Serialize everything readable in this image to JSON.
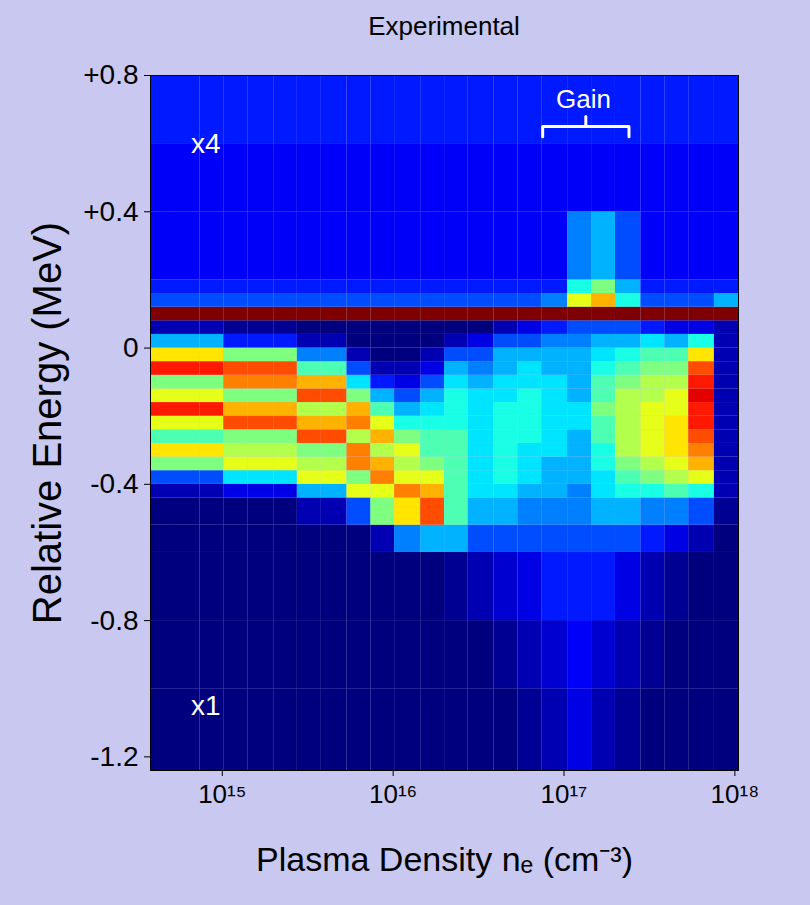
{
  "chart_data": {
    "type": "heatmap",
    "title": "Experimental",
    "x_label": "Plasma Density nₑ (cm⁻³)",
    "y_label": "Relative Energy (MeV)",
    "log": "x",
    "xlim": [
      380000000000000.0,
      1.05e+18
    ],
    "xticks": [
      {
        "value": 1000000000000000.0,
        "label": "10¹⁵"
      },
      {
        "value": 1e+16,
        "label": "10¹⁶"
      },
      {
        "value": 1e+17,
        "label": "10¹⁷"
      },
      {
        "value": 1e+18,
        "label": "10¹⁸"
      }
    ],
    "ylim": [
      -1.24,
      0.8
    ],
    "yticks": [
      {
        "value": 0.8,
        "label": "+0.8"
      },
      {
        "value": 0.4,
        "label": "+0.4"
      },
      0,
      -0.4,
      -0.8,
      -1.2
    ],
    "x_bins": [
      380000000000000.0,
      525000000000000.0,
      740000000000000.0,
      1020000000000000.0,
      1410000000000000.0,
      2000000000000000.0,
      2750000000000000.0,
      3800000000000000.0,
      5370000000000000.0,
      7410000000000000.0,
      1.02e+16,
      1.45e+16,
      2e+16,
      2.75e+16,
      3.89e+16,
      5.37e+16,
      7.41e+16,
      1.05e+17,
      1.45e+17,
      2e+17,
      2.82e+17,
      3.89e+17,
      5.37e+17,
      7.59e+17,
      1.05e+18
    ],
    "y_bins": [
      -1.24,
      -1.0,
      -0.8,
      -0.6,
      -0.52,
      -0.44,
      -0.4,
      -0.36,
      -0.32,
      -0.28,
      -0.24,
      -0.2,
      -0.16,
      -0.12,
      -0.08,
      -0.04,
      0.0,
      0.04,
      0.08,
      0.12,
      0.16,
      0.2,
      0.4,
      0.6,
      0.8
    ],
    "zlim": [
      0,
      1
    ],
    "cells": [
      [
        0,
        0,
        0,
        0,
        0,
        0.05,
        0.2,
        0.5,
        0.65,
        0.45,
        0.6,
        0.85,
        0.6,
        0.5,
        0.85,
        0.65,
        0.3,
        0.05,
        1,
        0.2,
        0.15,
        0.12,
        0.12,
        0.15
      ],
      [
        0,
        0,
        0,
        0,
        0,
        0.05,
        0.2,
        0.5,
        0.65,
        0.45,
        0.6,
        0.85,
        0.6,
        0.5,
        0.85,
        0.65,
        0.3,
        0.05,
        1,
        0.2,
        0.15,
        0.12,
        0.12,
        0.15
      ],
      [
        0,
        0,
        0,
        0,
        0,
        0.05,
        0.2,
        0.5,
        0.65,
        0.45,
        0.6,
        0.85,
        0.6,
        0.5,
        0.85,
        0.65,
        0.3,
        0.05,
        1,
        0.2,
        0.15,
        0.12,
        0.12,
        0.15
      ],
      [
        0,
        0,
        0,
        0,
        0,
        0.1,
        0.35,
        0.6,
        0.55,
        0.5,
        0.8,
        0.7,
        0.5,
        0.75,
        0.8,
        0.5,
        0.15,
        0.02,
        1,
        0.2,
        0.15,
        0.12,
        0.12,
        0.15
      ],
      [
        0,
        0,
        0,
        0,
        0,
        0.1,
        0.35,
        0.6,
        0.55,
        0.5,
        0.8,
        0.7,
        0.5,
        0.75,
        0.8,
        0.5,
        0.15,
        0.02,
        1,
        0.2,
        0.15,
        0.12,
        0.12,
        0.15
      ],
      [
        0,
        0,
        0,
        0,
        0,
        0.1,
        0.35,
        0.6,
        0.55,
        0.5,
        0.8,
        0.7,
        0.5,
        0.75,
        0.8,
        0.5,
        0.15,
        0.02,
        1,
        0.2,
        0.15,
        0.12,
        0.12,
        0.15
      ],
      [
        0,
        0,
        0,
        0,
        0.05,
        0.3,
        0.6,
        0.55,
        0.5,
        0.8,
        0.7,
        0.55,
        0.8,
        0.7,
        0.45,
        0.25,
        0.05,
        0,
        1,
        0.2,
        0.15,
        0.12,
        0.12,
        0.15
      ],
      [
        0,
        0,
        0,
        0,
        0.05,
        0.3,
        0.6,
        0.55,
        0.5,
        0.8,
        0.7,
        0.55,
        0.8,
        0.7,
        0.45,
        0.25,
        0.05,
        0,
        1,
        0.2,
        0.15,
        0.12,
        0.12,
        0.15
      ],
      [
        0,
        0,
        0,
        0,
        0.2,
        0.6,
        0.5,
        0.75,
        0.75,
        0.55,
        0.75,
        0.7,
        0.5,
        0.35,
        0.2,
        0.05,
        0,
        0,
        1,
        0.2,
        0.15,
        0.12,
        0.12,
        0.15
      ],
      [
        0,
        0,
        0,
        0.05,
        0.5,
        0.6,
        0.75,
        0.7,
        0.55,
        0.7,
        0.6,
        0.45,
        0.3,
        0.15,
        0.05,
        0,
        0,
        0,
        1,
        0.2,
        0.15,
        0.12,
        0.12,
        0.15
      ],
      [
        0,
        0,
        0,
        0.25,
        0.65,
        0.75,
        0.6,
        0.55,
        0.6,
        0.5,
        0.4,
        0.3,
        0.2,
        0.1,
        0.05,
        0,
        0,
        0,
        1,
        0.2,
        0.15,
        0.12,
        0.12,
        0.15
      ],
      [
        0,
        0,
        0,
        0.3,
        0.8,
        0.7,
        0.6,
        0.5,
        0.45,
        0.45,
        0.4,
        0.35,
        0.3,
        0.2,
        0.1,
        0.05,
        0,
        0,
        1,
        0.2,
        0.15,
        0.12,
        0.12,
        0.15
      ],
      [
        0,
        0,
        0.02,
        0.3,
        0.45,
        0.45,
        0.45,
        0.45,
        0.45,
        0.45,
        0.4,
        0.4,
        0.4,
        0.35,
        0.3,
        0.2,
        0.05,
        0,
        1,
        0.2,
        0.15,
        0.12,
        0.12,
        0.15
      ],
      [
        0,
        0,
        0.05,
        0.2,
        0.3,
        0.35,
        0.35,
        0.35,
        0.35,
        0.35,
        0.35,
        0.35,
        0.35,
        0.3,
        0.25,
        0.2,
        0.1,
        0,
        1,
        0.2,
        0.15,
        0.12,
        0.12,
        0.15
      ],
      [
        0,
        0.02,
        0.08,
        0.2,
        0.3,
        0.35,
        0.4,
        0.4,
        0.4,
        0.4,
        0.4,
        0.4,
        0.35,
        0.35,
        0.3,
        0.3,
        0.2,
        0.05,
        1,
        0.2,
        0.15,
        0.12,
        0.12,
        0.15
      ],
      [
        0.02,
        0.05,
        0.1,
        0.2,
        0.25,
        0.3,
        0.35,
        0.35,
        0.35,
        0.4,
        0.4,
        0.4,
        0.4,
        0.35,
        0.35,
        0.3,
        0.2,
        0.1,
        1,
        0.2,
        0.15,
        0.12,
        0.12,
        0.15
      ],
      [
        0.05,
        0.08,
        0.15,
        0.2,
        0.25,
        0.3,
        0.3,
        0.3,
        0.35,
        0.35,
        0.35,
        0.35,
        0.35,
        0.35,
        0.3,
        0.3,
        0.25,
        0.15,
        1,
        0.25,
        0.15,
        0.12,
        0.12,
        0.15
      ],
      [
        0.1,
        0.12,
        0.15,
        0.2,
        0.25,
        0.25,
        0.3,
        0.3,
        0.3,
        0.3,
        0.35,
        0.35,
        0.3,
        0.3,
        0.3,
        0.3,
        0.25,
        0.2,
        1,
        0.6,
        0.4,
        0.25,
        0.12,
        0.15
      ],
      [
        0.05,
        0.08,
        0.15,
        0.2,
        0.3,
        0.35,
        0.35,
        0.4,
        0.4,
        0.45,
        0.45,
        0.5,
        0.45,
        0.45,
        0.4,
        0.35,
        0.3,
        0.2,
        1,
        0.7,
        0.5,
        0.3,
        0.12,
        0.15
      ],
      [
        0.02,
        0.05,
        0.1,
        0.2,
        0.3,
        0.4,
        0.45,
        0.5,
        0.55,
        0.55,
        0.55,
        0.55,
        0.55,
        0.5,
        0.45,
        0.4,
        0.3,
        0.2,
        1,
        0.4,
        0.3,
        0.2,
        0.12,
        0.15
      ],
      [
        0,
        0.02,
        0.05,
        0.15,
        0.25,
        0.4,
        0.5,
        0.55,
        0.6,
        0.6,
        0.6,
        0.6,
        0.55,
        0.55,
        0.5,
        0.45,
        0.35,
        0.15,
        1,
        0.2,
        0.15,
        0.12,
        0.12,
        0.15
      ],
      [
        0,
        0,
        0.02,
        0.1,
        0.25,
        0.45,
        0.55,
        0.6,
        0.65,
        0.65,
        0.65,
        0.6,
        0.6,
        0.55,
        0.5,
        0.45,
        0.3,
        0.1,
        1,
        0.2,
        0.15,
        0.12,
        0.12,
        0.15
      ],
      [
        0,
        0,
        0,
        0.05,
        0.2,
        0.4,
        0.6,
        0.7,
        0.75,
        0.8,
        0.85,
        0.85,
        0.9,
        0.85,
        0.8,
        0.65,
        0.4,
        0.1,
        1,
        0.2,
        0.15,
        0.12,
        0.12,
        0.15
      ],
      [
        0,
        0,
        0,
        0,
        0.02,
        0.05,
        0.05,
        0.05,
        0.05,
        0.05,
        0.05,
        0.05,
        0.05,
        0.05,
        0.05,
        0.05,
        0.05,
        0.05,
        1,
        0.3,
        0.15,
        0.12,
        0.12,
        0.15
      ]
    ],
    "annotations": [
      {
        "text": "x4",
        "x": 800000000000000.0,
        "y": 0.6
      },
      {
        "text": "x1",
        "x": 800000000000000.0,
        "y": -1.05
      },
      {
        "text": "Gain",
        "x": 1.3e+17,
        "y": 0.73,
        "span": [
          7.5e+16,
          2.4e+17
        ]
      }
    ]
  }
}
